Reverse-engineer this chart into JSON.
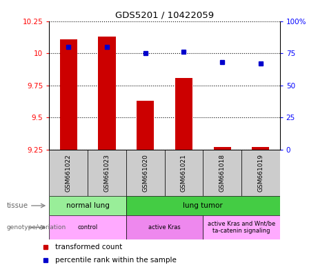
{
  "title": "GDS5201 / 10422059",
  "samples": [
    "GSM661022",
    "GSM661023",
    "GSM661020",
    "GSM661021",
    "GSM661018",
    "GSM661019"
  ],
  "bar_values": [
    10.11,
    10.13,
    9.63,
    9.81,
    9.27,
    9.27
  ],
  "percentile_values": [
    80,
    80,
    75,
    76,
    68,
    67
  ],
  "bar_color": "#cc0000",
  "dot_color": "#0000cc",
  "ylim_left": [
    9.25,
    10.25
  ],
  "ylim_right": [
    0,
    100
  ],
  "yticks_left": [
    9.25,
    9.5,
    9.75,
    10.0,
    10.25
  ],
  "yticks_right": [
    0,
    25,
    50,
    75,
    100
  ],
  "ytick_labels_left": [
    "9.25",
    "9.5",
    "9.75",
    "10",
    "10.25"
  ],
  "ytick_labels_right": [
    "0",
    "25",
    "50",
    "75",
    "100%"
  ],
  "tissue_groups": [
    {
      "label": "normal lung",
      "start": 0,
      "end": 2,
      "color": "#99ee99"
    },
    {
      "label": "lung tumor",
      "start": 2,
      "end": 6,
      "color": "#44cc44"
    }
  ],
  "genotype_groups": [
    {
      "label": "control",
      "start": 0,
      "end": 2,
      "color": "#ffaaff"
    },
    {
      "label": "active Kras",
      "start": 2,
      "end": 4,
      "color": "#ee88ee"
    },
    {
      "label": "active Kras and Wnt/be\nta-catenin signaling",
      "start": 4,
      "end": 6,
      "color": "#ffaaff"
    }
  ],
  "legend_red": "transformed count",
  "legend_blue": "percentile rank within the sample",
  "tissue_label": "tissue",
  "genotype_label": "genotype/variation",
  "bar_bottom": 9.25
}
